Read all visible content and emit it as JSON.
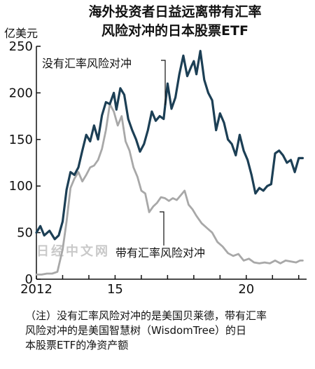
{
  "chart_data": {
    "type": "line",
    "title": "海外投资者日益远离带有汇率风险对冲的日本股票ETF",
    "title_lines": [
      "海外投资者日益远离带有汇率",
      "风险对冲的日本股票ETF"
    ],
    "ylabel": "亿美元",
    "ylim": [
      0,
      250
    ],
    "yticks": [
      0,
      50,
      100,
      150,
      200,
      250
    ],
    "xlim": [
      2012,
      2022.3
    ],
    "xticks": [
      {
        "value": 2012,
        "label": "2012"
      },
      {
        "value": 2015,
        "label": "15"
      },
      {
        "value": 2020,
        "label": "20"
      }
    ],
    "grid": false,
    "series": [
      {
        "name": "没有汇率风险对冲",
        "color": "#1c3f55",
        "x": [
          2012.0,
          2012.15,
          2012.3,
          2012.5,
          2012.7,
          2012.85,
          2013.0,
          2013.15,
          2013.3,
          2013.45,
          2013.6,
          2013.75,
          2013.9,
          2014.05,
          2014.2,
          2014.35,
          2014.5,
          2014.65,
          2014.8,
          2014.95,
          2015.05,
          2015.2,
          2015.35,
          2015.5,
          2015.65,
          2015.8,
          2015.95,
          2016.1,
          2016.25,
          2016.4,
          2016.55,
          2016.7,
          2016.85,
          2017.0,
          2017.15,
          2017.3,
          2017.45,
          2017.6,
          2017.75,
          2017.9,
          2018.0,
          2018.1,
          2018.25,
          2018.4,
          2018.55,
          2018.7,
          2018.85,
          2019.0,
          2019.15,
          2019.3,
          2019.45,
          2019.6,
          2019.75,
          2019.9,
          2020.05,
          2020.2,
          2020.35,
          2020.5,
          2020.65,
          2020.8,
          2020.95,
          2021.1,
          2021.25,
          2021.4,
          2021.55,
          2021.7,
          2021.85,
          2022.0,
          2022.15
        ],
        "values": [
          50,
          57,
          47,
          52,
          43,
          47,
          62,
          96,
          115,
          112,
          120,
          138,
          155,
          148,
          165,
          150,
          176,
          190,
          188,
          200,
          182,
          205,
          198,
          172,
          160,
          150,
          137,
          145,
          160,
          180,
          170,
          175,
          172,
          210,
          183,
          195,
          220,
          240,
          218,
          228,
          234,
          220,
          245,
          214,
          200,
          192,
          160,
          178,
          168,
          150,
          145,
          133,
          155,
          138,
          128,
          112,
          92,
          98,
          95,
          100,
          102,
          135,
          138,
          133,
          125,
          128,
          115,
          130,
          130
        ]
      },
      {
        "name": "带有汇率风险对冲",
        "color": "#a8a8a8",
        "x": [
          2012.0,
          2012.2,
          2012.4,
          2012.6,
          2012.8,
          2013.0,
          2013.15,
          2013.3,
          2013.45,
          2013.6,
          2013.75,
          2013.9,
          2014.05,
          2014.2,
          2014.35,
          2014.5,
          2014.65,
          2014.8,
          2014.95,
          2015.1,
          2015.25,
          2015.4,
          2015.55,
          2015.7,
          2015.85,
          2016.0,
          2016.15,
          2016.3,
          2016.45,
          2016.6,
          2016.75,
          2016.9,
          2017.05,
          2017.2,
          2017.35,
          2017.5,
          2017.65,
          2017.8,
          2017.95,
          2018.1,
          2018.3,
          2018.5,
          2018.7,
          2018.9,
          2019.1,
          2019.3,
          2019.5,
          2019.7,
          2019.9,
          2020.1,
          2020.3,
          2020.5,
          2020.7,
          2020.9,
          2021.1,
          2021.3,
          2021.5,
          2021.7,
          2021.9,
          2022.05,
          2022.15
        ],
        "values": [
          5,
          5,
          6,
          6,
          8,
          32,
          62,
          98,
          108,
          115,
          105,
          112,
          120,
          122,
          128,
          140,
          160,
          188,
          180,
          165,
          175,
          148,
          138,
          120,
          110,
          95,
          92,
          72,
          78,
          82,
          88,
          87,
          84,
          87,
          85,
          90,
          95,
          80,
          75,
          68,
          60,
          55,
          50,
          40,
          35,
          28,
          25,
          27,
          20,
          22,
          18,
          17,
          18,
          17,
          20,
          17,
          20,
          19,
          18,
          20,
          20
        ]
      }
    ],
    "annotations": [
      {
        "text": "没有汇率风险对冲",
        "series": 0
      },
      {
        "text": "带有汇率风险对冲",
        "series": 1
      }
    ]
  },
  "watermark": "日经中文网",
  "footnote": "（注）没有汇率风险对冲的是美国贝莱德，带有汇率\n风险对冲的是美国智慧树（WisdomTree）的日\n本股票ETF的净资产额"
}
